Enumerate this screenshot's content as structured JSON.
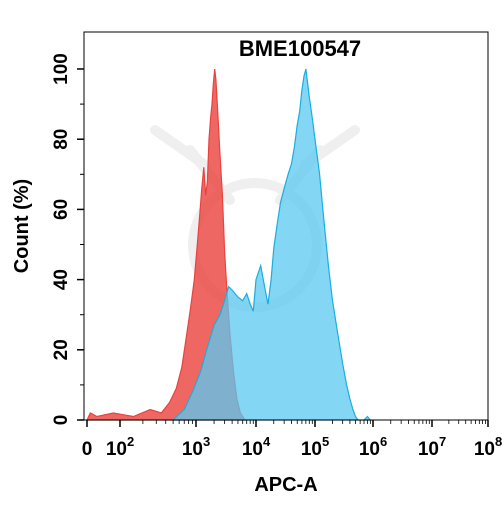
{
  "chart_data": {
    "type": "area",
    "title": "BME100547",
    "xlabel": "APC-A",
    "ylabel": "Count  (%)",
    "xscale": "biexponential",
    "xlim": [
      0,
      100000000
    ],
    "ylim": [
      0,
      110
    ],
    "x_ticks": [
      {
        "value": 0,
        "base": "0",
        "exp": ""
      },
      {
        "value": 100,
        "base": "10",
        "exp": "2"
      },
      {
        "value": 1000,
        "base": "10",
        "exp": "3"
      },
      {
        "value": 10000,
        "base": "10",
        "exp": "4"
      },
      {
        "value": 100000,
        "base": "10",
        "exp": "5"
      },
      {
        "value": 1000000,
        "base": "10",
        "exp": "6"
      },
      {
        "value": 10000000,
        "base": "10",
        "exp": "7"
      },
      {
        "value": 100000000,
        "base": "10",
        "exp": "8"
      }
    ],
    "y_ticks": [
      0,
      20,
      40,
      60,
      80,
      100
    ],
    "grid": false,
    "legend": "none",
    "series": [
      {
        "color": "#e8433f",
        "fill": "rgba(235,60,55,0.78)",
        "points": [
          [
            0,
            0
          ],
          [
            10,
            2
          ],
          [
            30,
            1
          ],
          [
            80,
            2
          ],
          [
            150,
            1
          ],
          [
            250,
            3
          ],
          [
            350,
            2
          ],
          [
            450,
            5
          ],
          [
            550,
            9
          ],
          [
            650,
            15
          ],
          [
            750,
            24
          ],
          [
            850,
            32
          ],
          [
            950,
            40
          ],
          [
            1050,
            50
          ],
          [
            1150,
            58
          ],
          [
            1250,
            66
          ],
          [
            1350,
            72
          ],
          [
            1450,
            64
          ],
          [
            1550,
            68
          ],
          [
            1650,
            80
          ],
          [
            1750,
            86
          ],
          [
            1850,
            90
          ],
          [
            1950,
            96
          ],
          [
            2050,
            100
          ],
          [
            2150,
            97
          ],
          [
            2300,
            88
          ],
          [
            2500,
            76
          ],
          [
            2750,
            64
          ],
          [
            3000,
            48
          ],
          [
            3300,
            36
          ],
          [
            3700,
            24
          ],
          [
            4200,
            14
          ],
          [
            4800,
            6
          ],
          [
            5500,
            2
          ],
          [
            6500,
            0
          ]
        ]
      },
      {
        "color": "#1aaedc",
        "fill": "rgba(90,200,240,0.75)",
        "points": [
          [
            500,
            0
          ],
          [
            700,
            3
          ],
          [
            900,
            8
          ],
          [
            1200,
            14
          ],
          [
            1500,
            20
          ],
          [
            2000,
            27
          ],
          [
            2500,
            30
          ],
          [
            3000,
            34
          ],
          [
            3500,
            38
          ],
          [
            4000,
            37
          ],
          [
            5000,
            35
          ],
          [
            6000,
            34
          ],
          [
            7000,
            36
          ],
          [
            8000,
            33
          ],
          [
            9000,
            31
          ],
          [
            10000,
            40
          ],
          [
            12000,
            44
          ],
          [
            14000,
            38
          ],
          [
            16000,
            33
          ],
          [
            18000,
            40
          ],
          [
            20000,
            49
          ],
          [
            23000,
            56
          ],
          [
            26000,
            62
          ],
          [
            30000,
            66
          ],
          [
            35000,
            70
          ],
          [
            40000,
            73
          ],
          [
            45000,
            78
          ],
          [
            50000,
            84
          ],
          [
            55000,
            88
          ],
          [
            60000,
            94
          ],
          [
            65000,
            98
          ],
          [
            70000,
            100
          ],
          [
            75000,
            96
          ],
          [
            80000,
            92
          ],
          [
            90000,
            86
          ],
          [
            100000,
            80
          ],
          [
            120000,
            70
          ],
          [
            140000,
            58
          ],
          [
            170000,
            44
          ],
          [
            200000,
            34
          ],
          [
            250000,
            24
          ],
          [
            300000,
            16
          ],
          [
            350000,
            10
          ],
          [
            400000,
            6
          ],
          [
            450000,
            3
          ],
          [
            500000,
            1
          ],
          [
            550000,
            0
          ],
          [
            700000,
            0
          ],
          [
            800000,
            1
          ],
          [
            900000,
            0
          ]
        ]
      }
    ]
  }
}
